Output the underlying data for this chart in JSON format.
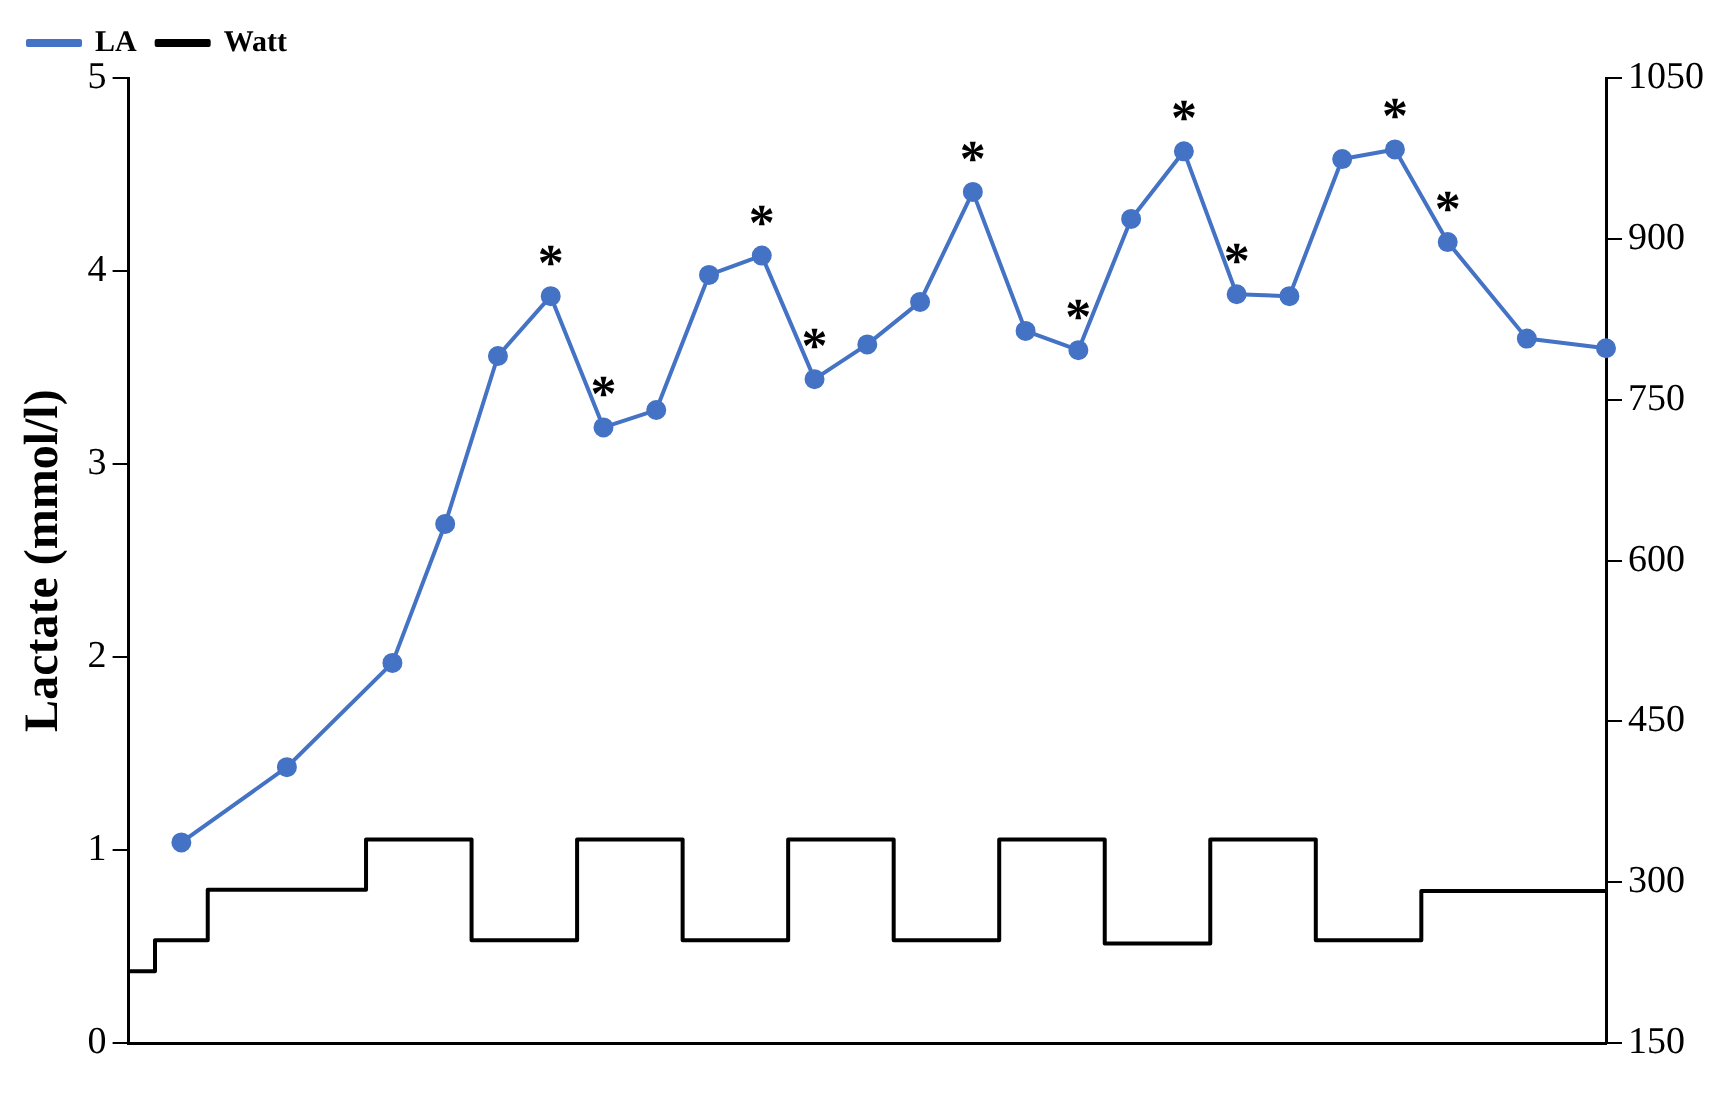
{
  "chart_data": {
    "type": "line",
    "ylabel": "Lactate (mmol/l)",
    "categories": [
      null,
      null,
      null,
      null,
      null,
      null,
      null,
      null,
      null,
      null,
      null,
      null,
      null,
      null,
      null,
      null,
      null,
      null,
      null,
      null,
      null,
      null,
      null,
      null,
      null,
      null,
      null,
      null,
      null,
      null,
      null,
      null,
      null,
      null,
      null,
      null,
      null,
      null,
      null,
      null,
      null,
      null,
      null,
      null,
      null,
      null,
      null,
      null,
      null,
      null,
      null,
      null,
      null,
      null,
      null,
      null,
      null
    ],
    "ylim": [
      0,
      5
    ],
    "yticks": [
      0,
      1,
      2,
      3,
      4,
      5
    ],
    "y2lim": [
      150,
      1050
    ],
    "y2ticks": [
      150,
      300,
      450,
      600,
      750,
      900,
      1050
    ],
    "grid": false,
    "legend": "top left",
    "series": [
      {
        "name": "LA",
        "color": "#4472c4",
        "marker": "circle",
        "values": [
          null,
          null,
          1.04,
          null,
          null,
          null,
          1.43,
          null,
          null,
          null,
          1.97,
          null,
          2.69,
          null,
          3.56,
          null,
          3.87,
          null,
          3.19,
          null,
          3.28,
          null,
          3.98,
          null,
          4.08,
          null,
          3.44,
          null,
          3.62,
          null,
          3.84,
          null,
          4.41,
          null,
          3.69,
          null,
          3.59,
          null,
          4.27,
          null,
          4.62,
          null,
          3.88,
          null,
          3.87,
          null,
          4.58,
          null,
          4.63,
          null,
          4.15,
          null,
          null,
          3.65,
          null,
          null,
          3.6
        ],
        "value_labels": [
          null,
          null,
          null,
          null,
          null,
          null,
          null,
          null,
          null,
          null,
          null,
          null,
          null,
          null,
          null,
          null,
          "*",
          null,
          "*",
          null,
          null,
          null,
          null,
          null,
          "*",
          null,
          "*",
          null,
          null,
          null,
          null,
          null,
          "*",
          null,
          null,
          null,
          "*",
          null,
          null,
          null,
          "*",
          null,
          "*",
          null,
          null,
          null,
          null,
          null,
          "*",
          null,
          "*",
          null,
          null,
          null,
          null,
          null,
          null
        ]
      },
      {
        "name": "Watt",
        "type": "step",
        "color": "#000000",
        "marker": "none",
        "axis": "y2",
        "values": [
          217,
          217,
          246,
          246,
          293,
          293,
          293,
          293,
          293,
          293,
          340,
          340,
          340,
          340,
          246,
          246,
          246,
          246,
          340,
          340,
          340,
          340,
          246,
          246,
          246,
          246,
          340,
          340,
          340,
          340,
          246,
          246,
          246,
          246,
          340,
          340,
          340,
          340,
          243,
          243,
          243,
          243,
          340,
          340,
          340,
          340,
          246,
          246,
          246,
          246,
          292,
          292,
          292,
          292,
          292,
          292,
          292
        ]
      }
    ]
  }
}
